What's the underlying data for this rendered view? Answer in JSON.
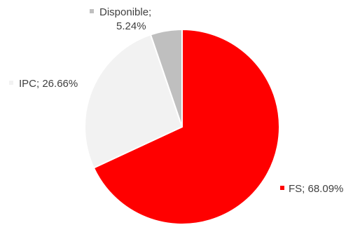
{
  "chart_data": {
    "type": "pie",
    "title": "",
    "series": [
      {
        "values": [
          {
            "category": "FS",
            "value": 68.09,
            "label": "FS; 68.09%",
            "color": "#ff0000"
          },
          {
            "category": "IPC",
            "value": 26.66,
            "label": "IPC; 26.66%",
            "color": "#f2f2f2"
          },
          {
            "category": "Disponible",
            "value": 5.24,
            "label_line1": "Disponible;",
            "label_line2": "5.24%",
            "color": "#bfbfbf"
          }
        ]
      }
    ],
    "start_angle_deg": 0,
    "direction": "clockwise",
    "legend": "none",
    "data_labels": "outside with color markers"
  }
}
